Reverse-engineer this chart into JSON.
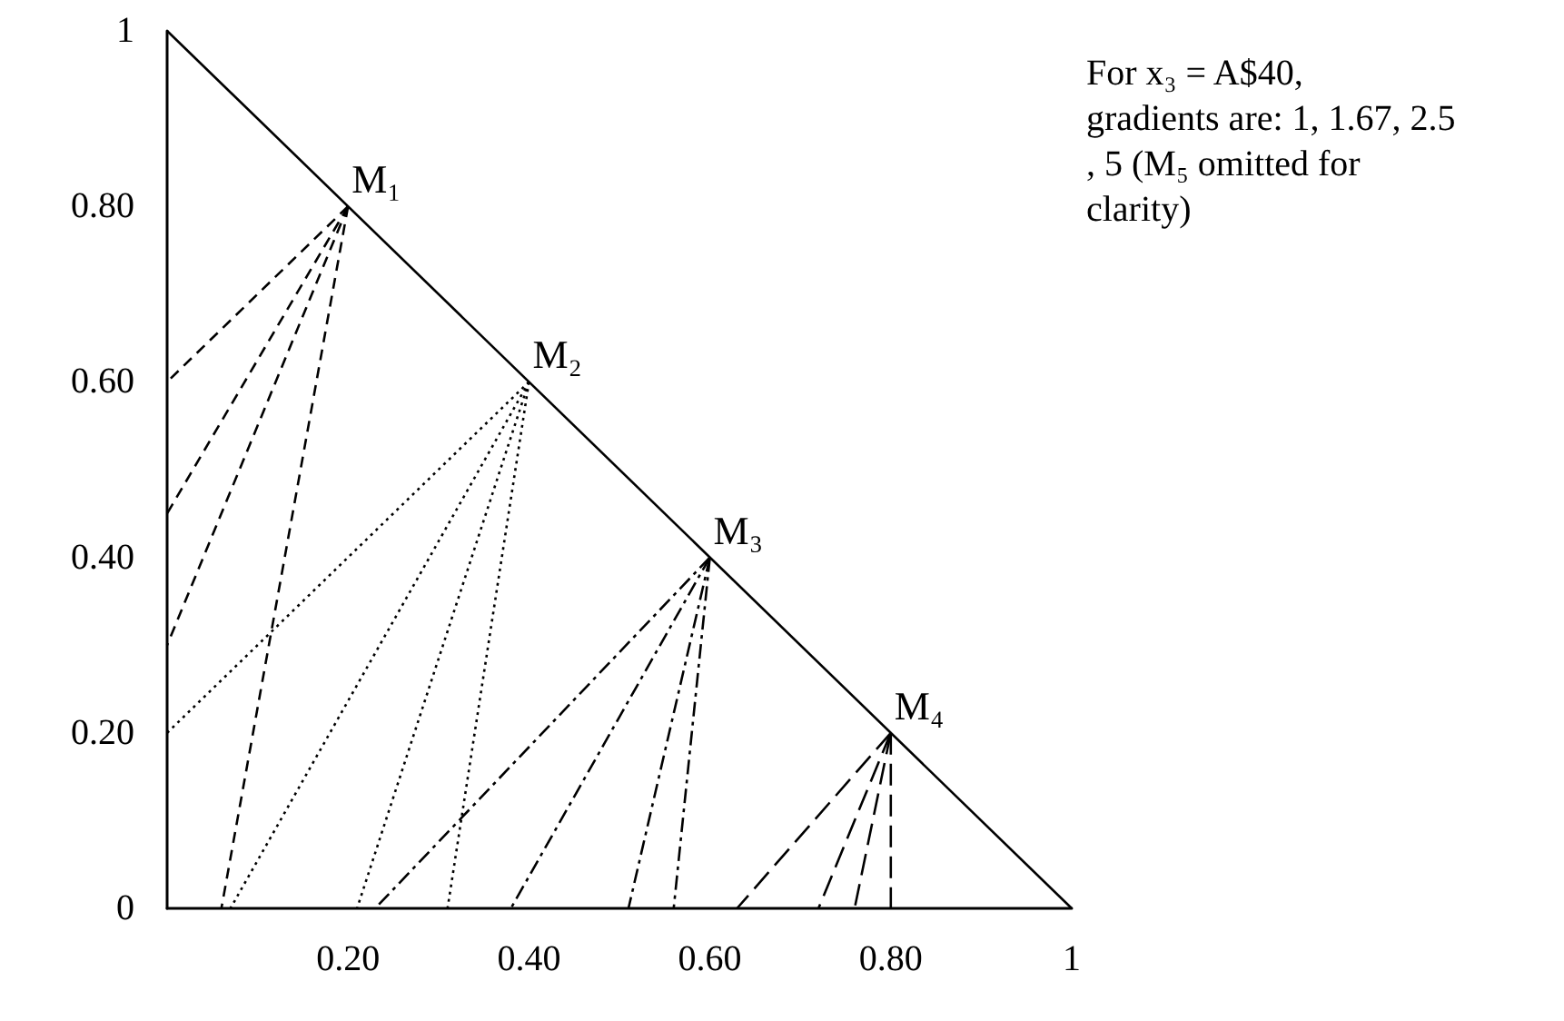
{
  "chart_data": {
    "type": "line",
    "xlim": [
      0,
      1
    ],
    "ylim": [
      0,
      1
    ],
    "xticks": [
      {
        "value": 0.2,
        "label": "0.20"
      },
      {
        "value": 0.4,
        "label": "0.40"
      },
      {
        "value": 0.6,
        "label": "0.60"
      },
      {
        "value": 0.8,
        "label": "0.80"
      },
      1
    ],
    "yticks": [
      0,
      {
        "value": 0.2,
        "label": "0.20"
      },
      {
        "value": 0.4,
        "label": "0.40"
      },
      {
        "value": 0.6,
        "label": "0.60"
      },
      {
        "value": 0.8,
        "label": "0.80"
      },
      1
    ],
    "grid": false,
    "marker": "none",
    "series": [
      {
        "color": "#000000",
        "line_style": "solid",
        "x": [
          0,
          1
        ],
        "values": [
          1,
          0
        ]
      },
      {
        "color": "#000000",
        "line_style": "dashed",
        "x": [
          0.2,
          0
        ],
        "values": [
          0.8,
          0.6
        ]
      },
      {
        "color": "#000000",
        "line_style": "dashed",
        "x": [
          0.2,
          0
        ],
        "values": [
          0.8,
          0.45
        ]
      },
      {
        "color": "#000000",
        "line_style": "dashed",
        "x": [
          0.2,
          0
        ],
        "values": [
          0.8,
          0.3
        ]
      },
      {
        "color": "#000000",
        "line_style": "dashed",
        "x": [
          0.2,
          0.06
        ],
        "values": [
          0.8,
          0
        ]
      },
      {
        "color": "#000000",
        "line_style": "dotted",
        "x": [
          0.4,
          0
        ],
        "values": [
          0.6,
          0.2
        ]
      },
      {
        "color": "#000000",
        "line_style": "dotted",
        "x": [
          0.4,
          0.07
        ],
        "values": [
          0.6,
          0
        ]
      },
      {
        "color": "#000000",
        "line_style": "dotted",
        "x": [
          0.4,
          0.21
        ],
        "values": [
          0.6,
          0
        ]
      },
      {
        "color": "#000000",
        "line_style": "dotted",
        "x": [
          0.4,
          0.31
        ],
        "values": [
          0.6,
          0
        ]
      },
      {
        "color": "#000000",
        "line_style": "dashdot",
        "x": [
          0.6,
          0.23
        ],
        "values": [
          0.4,
          0
        ]
      },
      {
        "color": "#000000",
        "line_style": "dashdot",
        "x": [
          0.6,
          0.38
        ],
        "values": [
          0.4,
          0
        ]
      },
      {
        "color": "#000000",
        "line_style": "dashdot",
        "x": [
          0.6,
          0.51
        ],
        "values": [
          0.4,
          0
        ]
      },
      {
        "color": "#000000",
        "line_style": "dashdot",
        "x": [
          0.6,
          0.56
        ],
        "values": [
          0.4,
          0
        ]
      },
      {
        "color": "#000000",
        "line_style": "longdash",
        "x": [
          0.8,
          0.63
        ],
        "values": [
          0.2,
          0
        ]
      },
      {
        "color": "#000000",
        "line_style": "longdash",
        "x": [
          0.8,
          0.72
        ],
        "values": [
          0.2,
          0
        ]
      },
      {
        "color": "#000000",
        "line_style": "longdash",
        "x": [
          0.8,
          0.76
        ],
        "values": [
          0.2,
          0
        ]
      },
      {
        "color": "#000000",
        "line_style": "longdash",
        "x": [
          0.8,
          0.8
        ],
        "values": [
          0.2,
          0
        ]
      }
    ],
    "annotations": [
      {
        "text": "M₁",
        "x": 0.2,
        "y": 0.8
      },
      {
        "text": "M₂",
        "x": 0.4,
        "y": 0.6
      },
      {
        "text": "M₃",
        "x": 0.6,
        "y": 0.4
      },
      {
        "text": "M₄",
        "x": 0.8,
        "y": 0.2
      },
      "For x₃ = A$40, gradients are: 1, 1.67, 2.5, 5 (M₅ omitted for clarity)"
    ]
  }
}
